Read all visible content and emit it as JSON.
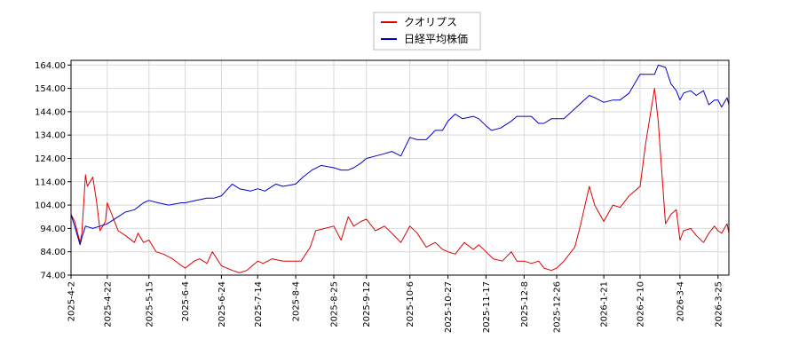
{
  "chart_data": {
    "type": "line",
    "title": "",
    "xlabel": "",
    "ylabel": "",
    "ylim": [
      74,
      166
    ],
    "yticks": [
      74.0,
      84.0,
      94.0,
      104.0,
      114.0,
      124.0,
      134.0,
      144.0,
      154.0,
      164.0
    ],
    "ytick_labels": [
      "74.00",
      "84.00",
      "94.00",
      "104.00",
      "114.00",
      "124.00",
      "134.00",
      "144.00",
      "154.00",
      "164.00"
    ],
    "xticks": [
      "2025-4-2",
      "2025-4-22",
      "2025-5-15",
      "2025-6-4",
      "2025-6-24",
      "2025-7-14",
      "2025-8-4",
      "2025-8-25",
      "2025-9-12",
      "2025-10-6",
      "2025-10-27",
      "2025-11-17",
      "2025-12-8",
      "2025-12-26",
      "2026-1-21",
      "2026-2-10",
      "2026-3-4",
      "2026-3-25"
    ],
    "grid": true,
    "legend_position": "top-center",
    "series": [
      {
        "name": "クオリプス",
        "color": "#dd0000",
        "points": [
          {
            "x": "2025-4-2",
            "y": 100
          },
          {
            "x": "2025-4-4",
            "y": 97
          },
          {
            "x": "2025-4-7",
            "y": 88
          },
          {
            "x": "2025-4-8",
            "y": 92
          },
          {
            "x": "2025-4-10",
            "y": 117
          },
          {
            "x": "2025-4-11",
            "y": 112
          },
          {
            "x": "2025-4-14",
            "y": 116
          },
          {
            "x": "2025-4-16",
            "y": 106
          },
          {
            "x": "2025-4-18",
            "y": 93
          },
          {
            "x": "2025-4-21",
            "y": 97
          },
          {
            "x": "2025-4-22",
            "y": 105
          },
          {
            "x": "2025-4-24",
            "y": 101
          },
          {
            "x": "2025-4-28",
            "y": 93
          },
          {
            "x": "2025-5-2",
            "y": 91
          },
          {
            "x": "2025-5-7",
            "y": 88
          },
          {
            "x": "2025-5-9",
            "y": 92
          },
          {
            "x": "2025-5-12",
            "y": 88
          },
          {
            "x": "2025-5-15",
            "y": 89
          },
          {
            "x": "2025-5-19",
            "y": 84
          },
          {
            "x": "2025-5-23",
            "y": 83
          },
          {
            "x": "2025-5-28",
            "y": 81
          },
          {
            "x": "2025-6-2",
            "y": 78
          },
          {
            "x": "2025-6-4",
            "y": 77
          },
          {
            "x": "2025-6-9",
            "y": 80
          },
          {
            "x": "2025-6-12",
            "y": 81
          },
          {
            "x": "2025-6-16",
            "y": 79
          },
          {
            "x": "2025-6-19",
            "y": 84
          },
          {
            "x": "2025-6-24",
            "y": 78
          },
          {
            "x": "2025-6-30",
            "y": 76
          },
          {
            "x": "2025-7-4",
            "y": 75
          },
          {
            "x": "2025-7-8",
            "y": 76
          },
          {
            "x": "2025-7-14",
            "y": 80
          },
          {
            "x": "2025-7-17",
            "y": 79
          },
          {
            "x": "2025-7-22",
            "y": 81
          },
          {
            "x": "2025-7-28",
            "y": 80
          },
          {
            "x": "2025-8-4",
            "y": 80
          },
          {
            "x": "2025-8-7",
            "y": 80
          },
          {
            "x": "2025-8-12",
            "y": 86
          },
          {
            "x": "2025-8-15",
            "y": 93
          },
          {
            "x": "2025-8-20",
            "y": 94
          },
          {
            "x": "2025-8-25",
            "y": 95
          },
          {
            "x": "2025-8-29",
            "y": 89
          },
          {
            "x": "2025-9-2",
            "y": 99
          },
          {
            "x": "2025-9-5",
            "y": 95
          },
          {
            "x": "2025-9-9",
            "y": 97
          },
          {
            "x": "2025-9-12",
            "y": 98
          },
          {
            "x": "2025-9-17",
            "y": 93
          },
          {
            "x": "2025-9-22",
            "y": 95
          },
          {
            "x": "2025-9-26",
            "y": 92
          },
          {
            "x": "2025-10-1",
            "y": 88
          },
          {
            "x": "2025-10-6",
            "y": 95
          },
          {
            "x": "2025-10-10",
            "y": 92
          },
          {
            "x": "2025-10-15",
            "y": 86
          },
          {
            "x": "2025-10-20",
            "y": 88
          },
          {
            "x": "2025-10-24",
            "y": 85
          },
          {
            "x": "2025-10-27",
            "y": 84
          },
          {
            "x": "2025-10-31",
            "y": 83
          },
          {
            "x": "2025-11-5",
            "y": 88
          },
          {
            "x": "2025-11-10",
            "y": 85
          },
          {
            "x": "2025-11-13",
            "y": 87
          },
          {
            "x": "2025-11-17",
            "y": 84
          },
          {
            "x": "2025-11-21",
            "y": 81
          },
          {
            "x": "2025-11-26",
            "y": 80
          },
          {
            "x": "2025-12-1",
            "y": 84
          },
          {
            "x": "2025-12-4",
            "y": 80
          },
          {
            "x": "2025-12-8",
            "y": 80
          },
          {
            "x": "2025-12-12",
            "y": 79
          },
          {
            "x": "2025-12-16",
            "y": 80
          },
          {
            "x": "2025-12-19",
            "y": 77
          },
          {
            "x": "2025-12-23",
            "y": 76
          },
          {
            "x": "2025-12-26",
            "y": 77
          },
          {
            "x": "2025-12-30",
            "y": 80
          },
          {
            "x": "2026-1-5",
            "y": 86
          },
          {
            "x": "2026-1-8",
            "y": 95
          },
          {
            "x": "2026-1-13",
            "y": 112
          },
          {
            "x": "2026-1-16",
            "y": 104
          },
          {
            "x": "2026-1-21",
            "y": 97
          },
          {
            "x": "2026-1-26",
            "y": 104
          },
          {
            "x": "2026-1-30",
            "y": 103
          },
          {
            "x": "2026-2-4",
            "y": 108
          },
          {
            "x": "2026-2-10",
            "y": 112
          },
          {
            "x": "2026-2-13",
            "y": 130
          },
          {
            "x": "2026-2-18",
            "y": 154
          },
          {
            "x": "2026-2-20",
            "y": 140
          },
          {
            "x": "2026-2-24",
            "y": 96
          },
          {
            "x": "2026-2-27",
            "y": 100
          },
          {
            "x": "2026-3-2",
            "y": 102
          },
          {
            "x": "2026-3-4",
            "y": 89
          },
          {
            "x": "2026-3-6",
            "y": 93
          },
          {
            "x": "2026-3-10",
            "y": 94
          },
          {
            "x": "2026-3-13",
            "y": 91
          },
          {
            "x": "2026-3-17",
            "y": 88
          },
          {
            "x": "2026-3-20",
            "y": 92
          },
          {
            "x": "2026-3-23",
            "y": 95
          },
          {
            "x": "2026-3-25",
            "y": 93
          },
          {
            "x": "2026-3-27",
            "y": 92
          },
          {
            "x": "2026-3-30",
            "y": 96
          },
          {
            "x": "2026-3-31",
            "y": 92
          }
        ]
      },
      {
        "name": "日経平均株価",
        "color": "#0000cc",
        "points": [
          {
            "x": "2025-4-2",
            "y": 100
          },
          {
            "x": "2025-4-4",
            "y": 95
          },
          {
            "x": "2025-4-7",
            "y": 87
          },
          {
            "x": "2025-4-8",
            "y": 90
          },
          {
            "x": "2025-4-10",
            "y": 95
          },
          {
            "x": "2025-4-14",
            "y": 94
          },
          {
            "x": "2025-4-18",
            "y": 95
          },
          {
            "x": "2025-4-22",
            "y": 96
          },
          {
            "x": "2025-4-28",
            "y": 99
          },
          {
            "x": "2025-5-2",
            "y": 101
          },
          {
            "x": "2025-5-7",
            "y": 102
          },
          {
            "x": "2025-5-12",
            "y": 105
          },
          {
            "x": "2025-5-15",
            "y": 106
          },
          {
            "x": "2025-5-20",
            "y": 105
          },
          {
            "x": "2025-5-26",
            "y": 104
          },
          {
            "x": "2025-6-2",
            "y": 105
          },
          {
            "x": "2025-6-4",
            "y": 105
          },
          {
            "x": "2025-6-10",
            "y": 106
          },
          {
            "x": "2025-6-16",
            "y": 107
          },
          {
            "x": "2025-6-20",
            "y": 107
          },
          {
            "x": "2025-6-24",
            "y": 108
          },
          {
            "x": "2025-6-30",
            "y": 113
          },
          {
            "x": "2025-7-4",
            "y": 111
          },
          {
            "x": "2025-7-10",
            "y": 110
          },
          {
            "x": "2025-7-14",
            "y": 111
          },
          {
            "x": "2025-7-18",
            "y": 110
          },
          {
            "x": "2025-7-24",
            "y": 113
          },
          {
            "x": "2025-7-28",
            "y": 112
          },
          {
            "x": "2025-8-4",
            "y": 113
          },
          {
            "x": "2025-8-8",
            "y": 116
          },
          {
            "x": "2025-8-13",
            "y": 119
          },
          {
            "x": "2025-8-18",
            "y": 121
          },
          {
            "x": "2025-8-25",
            "y": 120
          },
          {
            "x": "2025-8-29",
            "y": 119
          },
          {
            "x": "2025-9-2",
            "y": 119
          },
          {
            "x": "2025-9-5",
            "y": 120
          },
          {
            "x": "2025-9-9",
            "y": 122
          },
          {
            "x": "2025-9-12",
            "y": 124
          },
          {
            "x": "2025-9-17",
            "y": 125
          },
          {
            "x": "2025-9-22",
            "y": 126
          },
          {
            "x": "2025-9-26",
            "y": 127
          },
          {
            "x": "2025-10-1",
            "y": 125
          },
          {
            "x": "2025-10-6",
            "y": 133
          },
          {
            "x": "2025-10-10",
            "y": 132
          },
          {
            "x": "2025-10-15",
            "y": 132
          },
          {
            "x": "2025-10-20",
            "y": 136
          },
          {
            "x": "2025-10-24",
            "y": 136
          },
          {
            "x": "2025-10-27",
            "y": 140
          },
          {
            "x": "2025-10-31",
            "y": 143
          },
          {
            "x": "2025-11-4",
            "y": 141
          },
          {
            "x": "2025-11-10",
            "y": 142
          },
          {
            "x": "2025-11-13",
            "y": 141
          },
          {
            "x": "2025-11-17",
            "y": 138
          },
          {
            "x": "2025-11-20",
            "y": 136
          },
          {
            "x": "2025-11-25",
            "y": 137
          },
          {
            "x": "2025-12-1",
            "y": 140
          },
          {
            "x": "2025-12-4",
            "y": 142
          },
          {
            "x": "2025-12-8",
            "y": 142
          },
          {
            "x": "2025-12-12",
            "y": 142
          },
          {
            "x": "2025-12-16",
            "y": 139
          },
          {
            "x": "2025-12-19",
            "y": 139
          },
          {
            "x": "2025-12-23",
            "y": 141
          },
          {
            "x": "2025-12-26",
            "y": 141
          },
          {
            "x": "2025-12-30",
            "y": 141
          },
          {
            "x": "2026-1-6",
            "y": 146
          },
          {
            "x": "2026-1-13",
            "y": 151
          },
          {
            "x": "2026-1-16",
            "y": 150
          },
          {
            "x": "2026-1-21",
            "y": 148
          },
          {
            "x": "2026-1-26",
            "y": 149
          },
          {
            "x": "2026-1-30",
            "y": 149
          },
          {
            "x": "2026-2-4",
            "y": 152
          },
          {
            "x": "2026-2-10",
            "y": 160
          },
          {
            "x": "2026-2-13",
            "y": 160
          },
          {
            "x": "2026-2-18",
            "y": 160
          },
          {
            "x": "2026-2-20",
            "y": 164
          },
          {
            "x": "2026-2-24",
            "y": 163
          },
          {
            "x": "2026-2-27",
            "y": 156
          },
          {
            "x": "2026-3-2",
            "y": 153
          },
          {
            "x": "2026-3-4",
            "y": 149
          },
          {
            "x": "2026-3-6",
            "y": 152
          },
          {
            "x": "2026-3-10",
            "y": 153
          },
          {
            "x": "2026-3-13",
            "y": 151
          },
          {
            "x": "2026-3-17",
            "y": 153
          },
          {
            "x": "2026-3-20",
            "y": 147
          },
          {
            "x": "2026-3-23",
            "y": 149
          },
          {
            "x": "2026-3-25",
            "y": 149
          },
          {
            "x": "2026-3-27",
            "y": 146
          },
          {
            "x": "2026-3-30",
            "y": 150
          },
          {
            "x": "2026-3-31",
            "y": 147
          }
        ]
      }
    ]
  }
}
